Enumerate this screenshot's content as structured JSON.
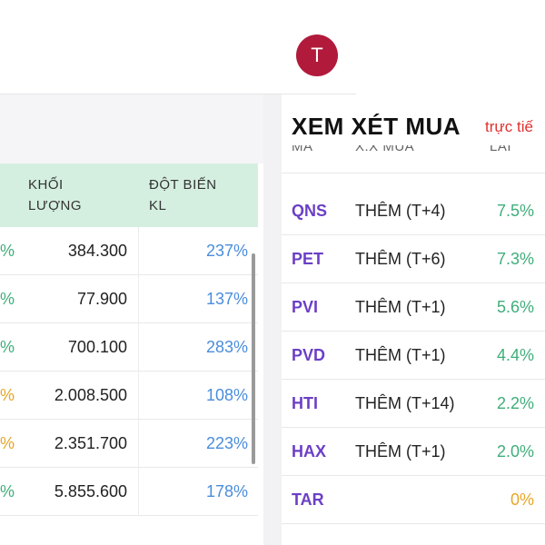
{
  "header": {
    "avatar_letter": "T"
  },
  "left_table": {
    "col_volume": [
      "KHỐI",
      "LƯỢNG"
    ],
    "col_spike": [
      "ĐỘT BIẾN",
      "KL"
    ],
    "rows": [
      {
        "pct": "%",
        "pct_color": "#3fae7a",
        "volume": "384.300",
        "spike": "237%"
      },
      {
        "pct": "%",
        "pct_color": "#3fae7a",
        "volume": "77.900",
        "spike": "137%"
      },
      {
        "pct": "%",
        "pct_color": "#3fae7a",
        "volume": "700.100",
        "spike": "283%"
      },
      {
        "pct": "%",
        "pct_color": "#e8a524",
        "volume": "2.008.500",
        "spike": "108%"
      },
      {
        "pct": "%",
        "pct_color": "#e8a524",
        "volume": "2.351.700",
        "spike": "223%"
      },
      {
        "pct": "%",
        "pct_color": "#3fae7a",
        "volume": "5.855.600",
        "spike": "178%"
      }
    ]
  },
  "right_panel": {
    "title": "XEM XÉT MUA",
    "live_label": "trực tiế",
    "col_code": "MÃ",
    "col_status": "X.X MUA",
    "col_profit": "LÃI",
    "rows": [
      {
        "code": "QNS",
        "status": "THÊM (T+4)",
        "profit": "7.5%"
      },
      {
        "code": "PET",
        "status": "THÊM (T+6)",
        "profit": "7.3%"
      },
      {
        "code": "PVI",
        "status": "THÊM (T+1)",
        "profit": "5.6%"
      },
      {
        "code": "PVD",
        "status": "THÊM (T+1)",
        "profit": "4.4%"
      },
      {
        "code": "HTI",
        "status": "THÊM (T+14)",
        "profit": "2.2%"
      },
      {
        "code": "HAX",
        "status": "THÊM (T+1)",
        "profit": "2.0%"
      },
      {
        "code": "TAR",
        "status": "",
        "profit": "0%"
      }
    ]
  },
  "colors": {
    "accent_purple": "#6b3fc6",
    "up_green": "#3fae7a",
    "neutral_yellow": "#e8a524",
    "spike_blue": "#4a8ddc",
    "header_green": "#d4efe0",
    "avatar_red": "#b11a3b"
  }
}
